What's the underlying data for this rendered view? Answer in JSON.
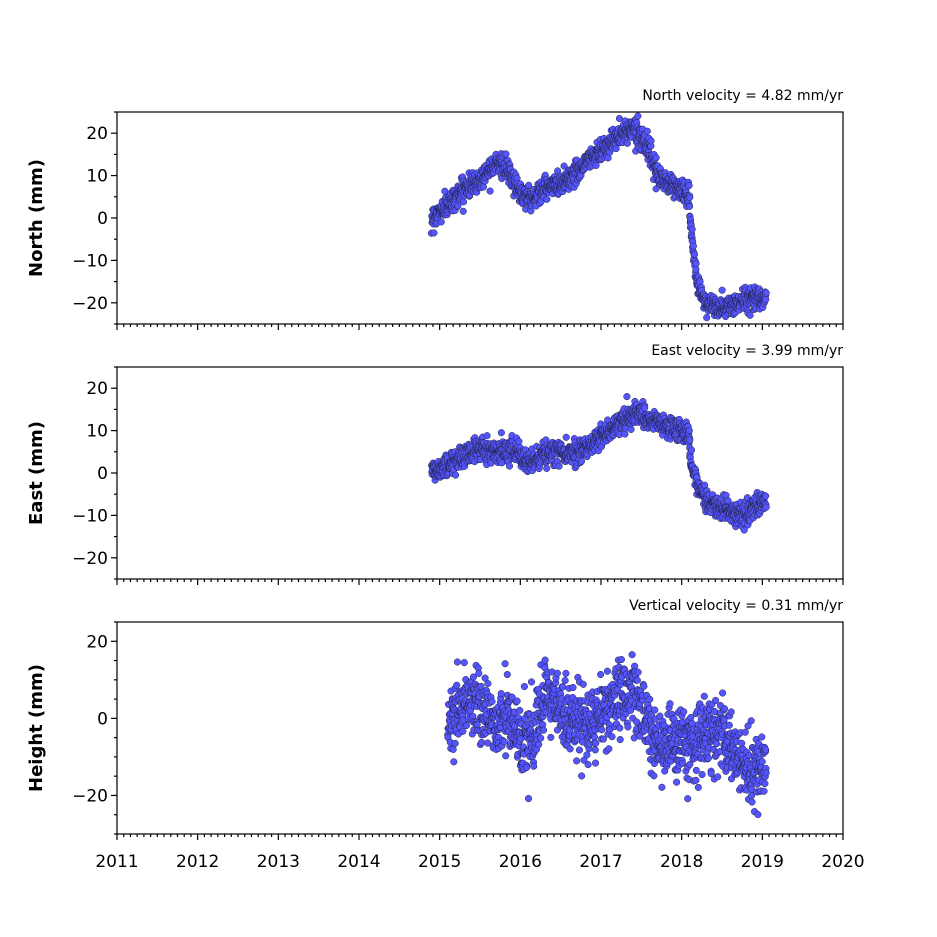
{
  "chart_data": [
    {
      "type": "scatter",
      "name": "north",
      "ylabel": "North (mm)",
      "annotation": "North velocity = 4.82 mm/yr",
      "ylim": [
        -25,
        25
      ],
      "yticks": [
        -20,
        -10,
        0,
        10,
        20
      ],
      "xlim": [
        2011,
        2020
      ],
      "marker_color": "#5555ff",
      "series": [
        {
          "trend": [
            [
              2014.9,
              0
            ],
            [
              2015.1,
              3
            ],
            [
              2015.3,
              7
            ],
            [
              2015.5,
              9
            ],
            [
              2015.7,
              13.5
            ],
            [
              2015.85,
              11
            ],
            [
              2016.0,
              6
            ],
            [
              2016.15,
              4.5
            ],
            [
              2016.3,
              7
            ],
            [
              2016.5,
              8
            ],
            [
              2016.7,
              11
            ],
            [
              2016.85,
              14
            ],
            [
              2017.0,
              16
            ],
            [
              2017.2,
              19
            ],
            [
              2017.4,
              21.5
            ],
            [
              2017.55,
              18
            ],
            [
              2017.7,
              10
            ],
            [
              2017.85,
              8
            ],
            [
              2018.0,
              6.5
            ],
            [
              2018.1,
              5
            ],
            [
              2018.1,
              -1
            ],
            [
              2018.15,
              -8
            ],
            [
              2018.2,
              -16
            ],
            [
              2018.3,
              -20
            ],
            [
              2018.5,
              -21.5
            ],
            [
              2018.7,
              -20
            ],
            [
              2018.9,
              -18.5
            ],
            [
              2019.05,
              -18.5
            ]
          ],
          "noise": 1.3
        }
      ]
    },
    {
      "type": "scatter",
      "name": "east",
      "ylabel": "East (mm)",
      "annotation": "East velocity = 3.99 mm/yr",
      "ylim": [
        -25,
        25
      ],
      "yticks": [
        -20,
        -10,
        0,
        10,
        20
      ],
      "xlim": [
        2011,
        2020
      ],
      "marker_color": "#5555ff",
      "series": [
        {
          "trend": [
            [
              2014.9,
              0
            ],
            [
              2015.1,
              2
            ],
            [
              2015.3,
              4
            ],
            [
              2015.5,
              6
            ],
            [
              2015.7,
              5
            ],
            [
              2015.9,
              6
            ],
            [
              2016.1,
              2
            ],
            [
              2016.3,
              4.5
            ],
            [
              2016.5,
              5
            ],
            [
              2016.7,
              5
            ],
            [
              2016.9,
              7
            ],
            [
              2017.1,
              10
            ],
            [
              2017.3,
              13
            ],
            [
              2017.45,
              14
            ],
            [
              2017.6,
              12.5
            ],
            [
              2017.8,
              11
            ],
            [
              2018.0,
              10
            ],
            [
              2018.1,
              8.5
            ],
            [
              2018.1,
              3
            ],
            [
              2018.2,
              -3
            ],
            [
              2018.35,
              -7
            ],
            [
              2018.55,
              -9
            ],
            [
              2018.75,
              -10
            ],
            [
              2018.9,
              -8
            ],
            [
              2019.05,
              -7
            ]
          ],
          "noise": 1.3
        }
      ]
    },
    {
      "type": "scatter",
      "name": "height",
      "ylabel": "Height (mm)",
      "annotation": "Vertical velocity = 0.31 mm/yr",
      "ylim": [
        -30,
        25
      ],
      "yticks": [
        -20,
        0,
        20
      ],
      "xlim": [
        2011,
        2020
      ],
      "marker_color": "#5555ff",
      "series": [
        {
          "trend": [
            [
              2015.1,
              -2
            ],
            [
              2015.3,
              5
            ],
            [
              2015.5,
              3
            ],
            [
              2015.7,
              -1
            ],
            [
              2015.9,
              0
            ],
            [
              2016.0,
              -5
            ],
            [
              2016.15,
              -7
            ],
            [
              2016.3,
              5
            ],
            [
              2016.5,
              2
            ],
            [
              2016.7,
              -1
            ],
            [
              2016.9,
              -2
            ],
            [
              2017.0,
              2
            ],
            [
              2017.2,
              5
            ],
            [
              2017.4,
              8
            ],
            [
              2017.55,
              0
            ],
            [
              2017.7,
              -8
            ],
            [
              2017.9,
              -6
            ],
            [
              2018.1,
              -7
            ],
            [
              2018.3,
              -5
            ],
            [
              2018.5,
              -4
            ],
            [
              2018.7,
              -10
            ],
            [
              2018.9,
              -15
            ],
            [
              2019.05,
              -14
            ]
          ],
          "noise": 4.5
        }
      ]
    }
  ],
  "x_axis": {
    "tick_labels": [
      "2011",
      "2012",
      "2013",
      "2014",
      "2015",
      "2016",
      "2017",
      "2018",
      "2019",
      "2020"
    ],
    "minor_per_year": 12
  }
}
